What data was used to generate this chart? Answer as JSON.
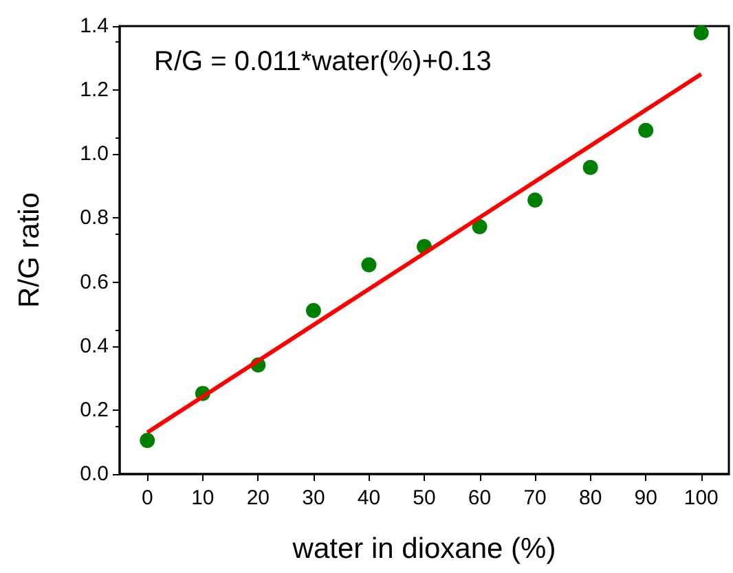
{
  "chart_data": {
    "type": "scatter",
    "xlabel": "water in dioxane (%)",
    "ylabel": "R/G ratio",
    "annotations": [
      "R/G = 0.011*water(%)+0.13"
    ],
    "xlim": [
      -5,
      105
    ],
    "xticks": [
      0,
      10,
      20,
      30,
      40,
      50,
      60,
      70,
      80,
      90,
      100
    ],
    "ylim": [
      0,
      1.4
    ],
    "yticks": [
      {
        "value": 0,
        "label": "0.0"
      },
      0.2,
      0.4,
      0.6,
      0.8,
      {
        "value": 1,
        "label": "1.0"
      },
      1.2,
      1.4
    ],
    "grid": false,
    "series": [
      {
        "color": "#008000",
        "marker": "circle",
        "x": [
          0,
          10,
          20,
          30,
          40,
          50,
          60,
          70,
          80,
          90,
          100
        ],
        "values": [
          0.105,
          0.252,
          0.341,
          0.511,
          0.654,
          0.711,
          0.773,
          0.856,
          0.958,
          1.074,
          1.379
        ]
      },
      {
        "type": "line",
        "color": "#ff0000",
        "marker": "none",
        "line_style": "solid",
        "x": [
          0,
          100
        ],
        "values": [
          0.13,
          1.25
        ]
      }
    ]
  }
}
